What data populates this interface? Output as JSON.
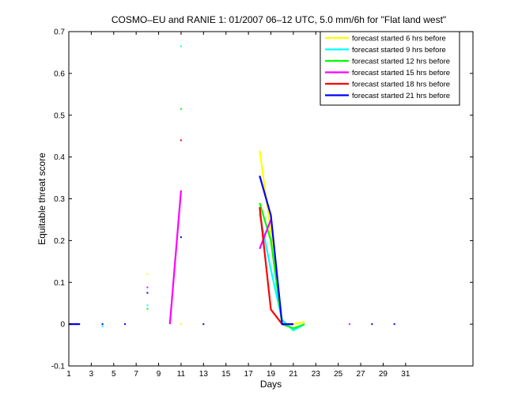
{
  "chart_data": {
    "type": "line",
    "title": "COSMO–EU and RANIE 1: 01/2007 06–12 UTC, 5.0 mm/6h for \"Flat land west\"",
    "xlabel": "Days",
    "ylabel": "Equitable threat score",
    "xlim": [
      1,
      37
    ],
    "ylim": [
      -0.1,
      0.7
    ],
    "xticks": [
      "1",
      "3",
      "5",
      "7",
      "9",
      "11",
      "13",
      "15",
      "17",
      "19",
      "21",
      "23",
      "25",
      "27",
      "29",
      "31"
    ],
    "xtick_values": [
      1,
      3,
      5,
      7,
      9,
      11,
      13,
      15,
      17,
      19,
      21,
      23,
      25,
      27,
      29,
      31
    ],
    "yticks": [
      "-0.1",
      "0",
      "0.1",
      "0.2",
      "0.3",
      "0.4",
      "0.5",
      "0.6",
      "0.7"
    ],
    "ytick_values": [
      -0.1,
      0,
      0.1,
      0.2,
      0.3,
      0.4,
      0.5,
      0.6,
      0.7
    ],
    "grid": false,
    "legend_position": "top-right",
    "series": [
      {
        "name": "forecast started 6 hrs before",
        "color": "#ffff00",
        "segments": [
          [
            [
              1,
              0
            ],
            [
              2,
              0
            ]
          ],
          [
            [
              18,
              0.415
            ],
            [
              19,
              0.22
            ],
            [
              20,
              0.0
            ],
            [
              21,
              0.0
            ],
            [
              22,
              0.005
            ]
          ]
        ],
        "points": [
          [
            4,
            0
          ],
          [
            8,
            0.12
          ],
          [
            11,
            0.0
          ]
        ]
      },
      {
        "name": "forecast started 9 hrs before",
        "color": "#00ffff",
        "segments": [
          [
            [
              18,
              0.265
            ],
            [
              19,
              0.13
            ],
            [
              20,
              0.01
            ],
            [
              21,
              -0.015
            ],
            [
              22,
              0.0
            ]
          ]
        ],
        "points": [
          [
            4,
            -0.005
          ],
          [
            8,
            0.045
          ],
          [
            11,
            0.665
          ]
        ]
      },
      {
        "name": "forecast started 12 hrs before",
        "color": "#00ff00",
        "segments": [
          [
            [
              18,
              0.29
            ],
            [
              19,
              0.2
            ],
            [
              20,
              0.0
            ],
            [
              21,
              -0.01
            ],
            [
              22,
              0.0
            ]
          ]
        ],
        "points": [
          [
            8,
            0.037
          ],
          [
            11,
            0.515
          ]
        ]
      },
      {
        "name": "forecast started 15 hrs before",
        "color": "#ff00ff",
        "segments": [
          [
            [
              10,
              0.0
            ],
            [
              11,
              0.32
            ]
          ],
          [
            [
              18,
              0.18
            ],
            [
              19,
              0.25
            ]
          ]
        ],
        "points": [
          [
            8,
            0.088
          ],
          [
            26,
            0.0
          ]
        ]
      },
      {
        "name": "forecast started 18 hrs before",
        "color": "#ff0000",
        "segments": [
          [
            [
              18,
              0.28
            ],
            [
              19,
              0.035
            ],
            [
              20,
              0.0
            ],
            [
              21,
              0.0
            ]
          ]
        ],
        "points": [
          [
            11,
            0.44
          ]
        ]
      },
      {
        "name": "forecast started 21 hrs before",
        "color": "#0000ff",
        "segments": [
          [
            [
              1,
              0
            ],
            [
              2,
              0
            ]
          ],
          [
            [
              18,
              0.355
            ],
            [
              19,
              0.26
            ],
            [
              20,
              0.0
            ],
            [
              21,
              0.0
            ]
          ]
        ],
        "points": [
          [
            4,
            0
          ],
          [
            6,
            0
          ],
          [
            8,
            0.075
          ],
          [
            11,
            0.208
          ],
          [
            13,
            0
          ],
          [
            28,
            0
          ],
          [
            30,
            0
          ]
        ]
      }
    ]
  }
}
